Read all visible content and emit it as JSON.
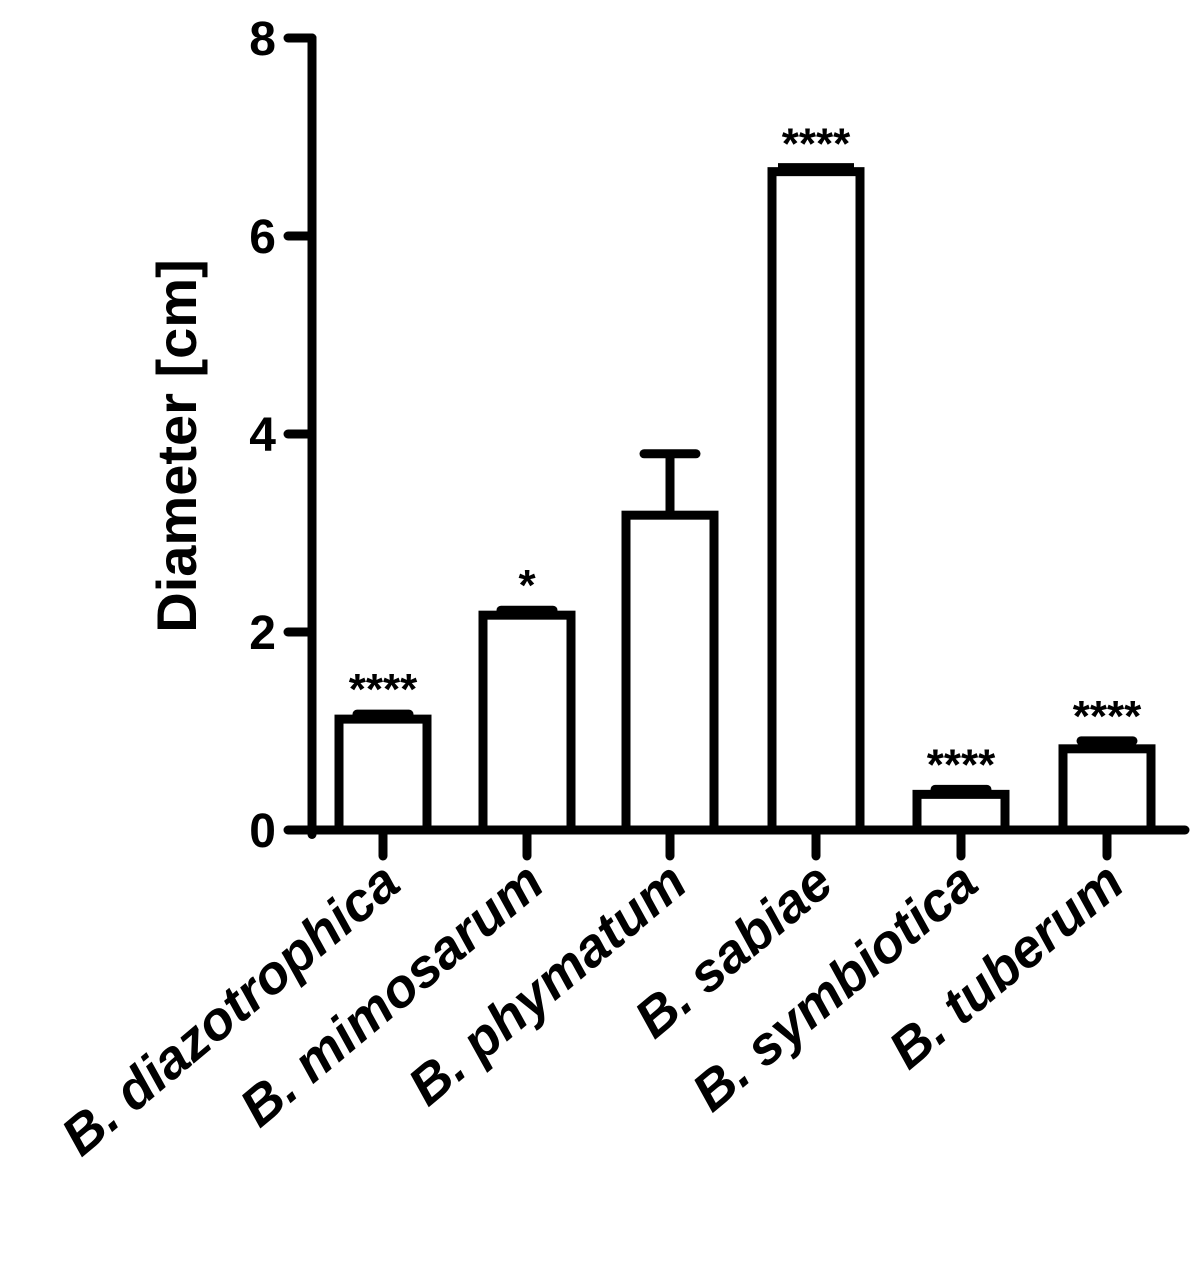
{
  "chart_data": {
    "type": "bar",
    "title": "",
    "xlabel": "",
    "ylabel": "Diameter [cm]",
    "ylim": [
      0,
      8
    ],
    "yticks": [
      "0",
      "2",
      "4",
      "6",
      "8"
    ],
    "grid": false,
    "legend": "none",
    "categories": [
      "B. diazotrophica",
      "B. mimosarum",
      "B. phymatum",
      "B. sabiae",
      "B. symbiotica",
      "B. tuberum"
    ],
    "values": [
      1.12,
      2.17,
      3.18,
      6.65,
      0.36,
      0.82
    ],
    "errors": [
      0.05,
      0.05,
      0.62,
      0.03,
      0.05,
      0.08
    ],
    "significance": [
      "****",
      "*",
      "",
      "****",
      "****",
      "****"
    ],
    "colors": {
      "bar_fill": "#ffffff",
      "bar_stroke": "#000000",
      "axis": "#000000"
    }
  }
}
